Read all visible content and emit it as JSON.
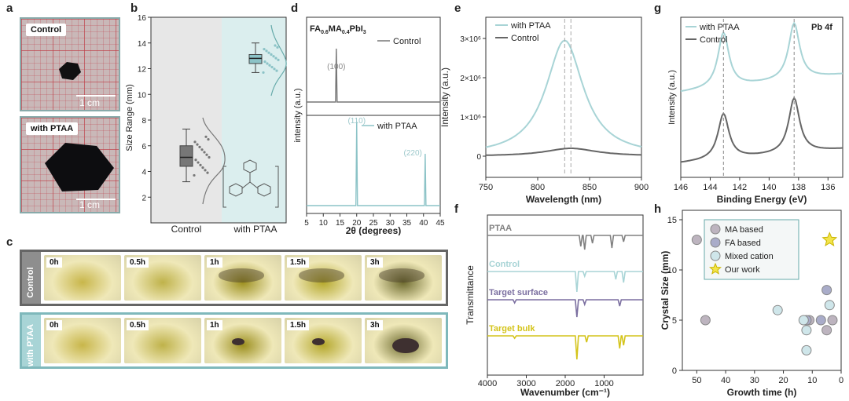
{
  "panel_labels": [
    "a",
    "b",
    "c",
    "d",
    "e",
    "f",
    "g",
    "h"
  ],
  "panel_a": {
    "top_tag": "Control",
    "bottom_tag": "with PTAA",
    "scale_top": "1 cm",
    "scale_bottom": "1 cm"
  },
  "panel_c": {
    "row_labels": [
      "Control",
      "with PTAA"
    ],
    "times": [
      "0h",
      "0.5h",
      "1h",
      "1.5h",
      "3h"
    ],
    "vial_colors": [
      "#c8b64a",
      "#bfb24a",
      "#9c8f1e",
      "#b5a82c",
      "#6d6a2e"
    ]
  },
  "chart_data": [
    {
      "panel": "b",
      "type": "box",
      "ylabel": "Size Range (mm)",
      "ylim": [
        0,
        16
      ],
      "yticks": [
        2,
        4,
        6,
        8,
        10,
        12,
        14,
        16
      ],
      "categories": [
        "Control",
        "with PTAA"
      ],
      "boxes": [
        {
          "min": 3.2,
          "q1": 4.4,
          "median": 5.1,
          "q3": 6.0,
          "max": 7.3
        },
        {
          "min": 11.7,
          "q1": 12.4,
          "median": 12.8,
          "q3": 13.1,
          "max": 14.0
        }
      ],
      "colors": [
        "#777777",
        "#8cc3c7"
      ]
    },
    {
      "panel": "d",
      "type": "line",
      "title": "FA",
      "title_sub1": "0.6",
      "title_mid": "MA",
      "title_sub2": "0.4",
      "title_end": "PbI",
      "title_sub3": "3",
      "xlabel": "2θ (degrees)",
      "ylabel": "intensity (a.u.)",
      "xlim": [
        5,
        45
      ],
      "xticks": [
        5,
        10,
        15,
        20,
        25,
        30,
        35,
        40,
        45
      ],
      "series": [
        {
          "name": "Control",
          "peaks": [
            {
              "x": 13.9,
              "label": "(100)"
            }
          ]
        },
        {
          "name": "with PTAA",
          "peaks": [
            {
              "x": 20.0,
              "label": "(110)"
            },
            {
              "x": 40.5,
              "label": "(220)"
            }
          ]
        }
      ]
    },
    {
      "panel": "e",
      "type": "line",
      "xlabel": "Wavelength (nm)",
      "ylabel": "Intensity (a.u.)",
      "xlim": [
        750,
        900
      ],
      "xticks": [
        750,
        800,
        850,
        900
      ],
      "yticks": [
        "0",
        "1×10⁶",
        "2×10⁶",
        "3×10⁶"
      ],
      "legend": [
        "with PTAA",
        "Control"
      ],
      "series": [
        {
          "name": "with PTAA",
          "peak_x": 826,
          "peak_y": 2.95
        },
        {
          "name": "Control",
          "peak_x": 832,
          "peak_y": 0.2
        }
      ]
    },
    {
      "panel": "f",
      "type": "line",
      "xlabel": "Wavenumber (cm⁻¹)",
      "ylabel": "Transmittance",
      "xlim": [
        4000,
        0
      ],
      "xticks": [
        4000,
        3000,
        2000,
        1000
      ],
      "series": [
        {
          "name": "PTAA",
          "color": "#808080"
        },
        {
          "name": "Control",
          "color": "#a8d4d6"
        },
        {
          "name": "Target surface",
          "color": "#7b6fa0"
        },
        {
          "name": "Target bulk",
          "color": "#d4c41a"
        }
      ]
    },
    {
      "panel": "g",
      "type": "line",
      "xlabel": "Binding Energy (eV)",
      "ylabel": "Intensity (a.u.)",
      "xlim": [
        146,
        135
      ],
      "xticks": [
        146,
        144,
        142,
        140,
        138,
        136
      ],
      "legend": [
        "with PTAA",
        "Control"
      ],
      "annotation": "Pb 4f",
      "peaks": [
        143.1,
        138.3
      ]
    },
    {
      "panel": "h",
      "type": "scatter",
      "xlabel": "Growth time (h)",
      "ylabel": "Crystal Size (mm)",
      "xlim": [
        55,
        0
      ],
      "ylim": [
        0,
        15
      ],
      "xticks": [
        50,
        40,
        30,
        20,
        10,
        0
      ],
      "yticks": [
        0,
        5,
        10,
        15
      ],
      "series": [
        {
          "name": "MA based",
          "color": "#bdb4bf",
          "points": [
            [
              50,
              13
            ],
            [
              47,
              5
            ],
            [
              11,
              5
            ],
            [
              5,
              4
            ],
            [
              3,
              5
            ]
          ]
        },
        {
          "name": "FA based",
          "color": "#a9acc9",
          "points": [
            [
              5,
              8
            ],
            [
              12,
              5
            ],
            [
              7,
              5
            ]
          ]
        },
        {
          "name": "Mixed cation",
          "color": "#cfe6ea",
          "points": [
            [
              22,
              6
            ],
            [
              13,
              5
            ],
            [
              12,
              4
            ],
            [
              12,
              2
            ],
            [
              4,
              6.5
            ]
          ]
        },
        {
          "name": "Our work",
          "color": "#f3e44a",
          "points": [
            [
              4,
              13
            ]
          ]
        }
      ]
    }
  ]
}
